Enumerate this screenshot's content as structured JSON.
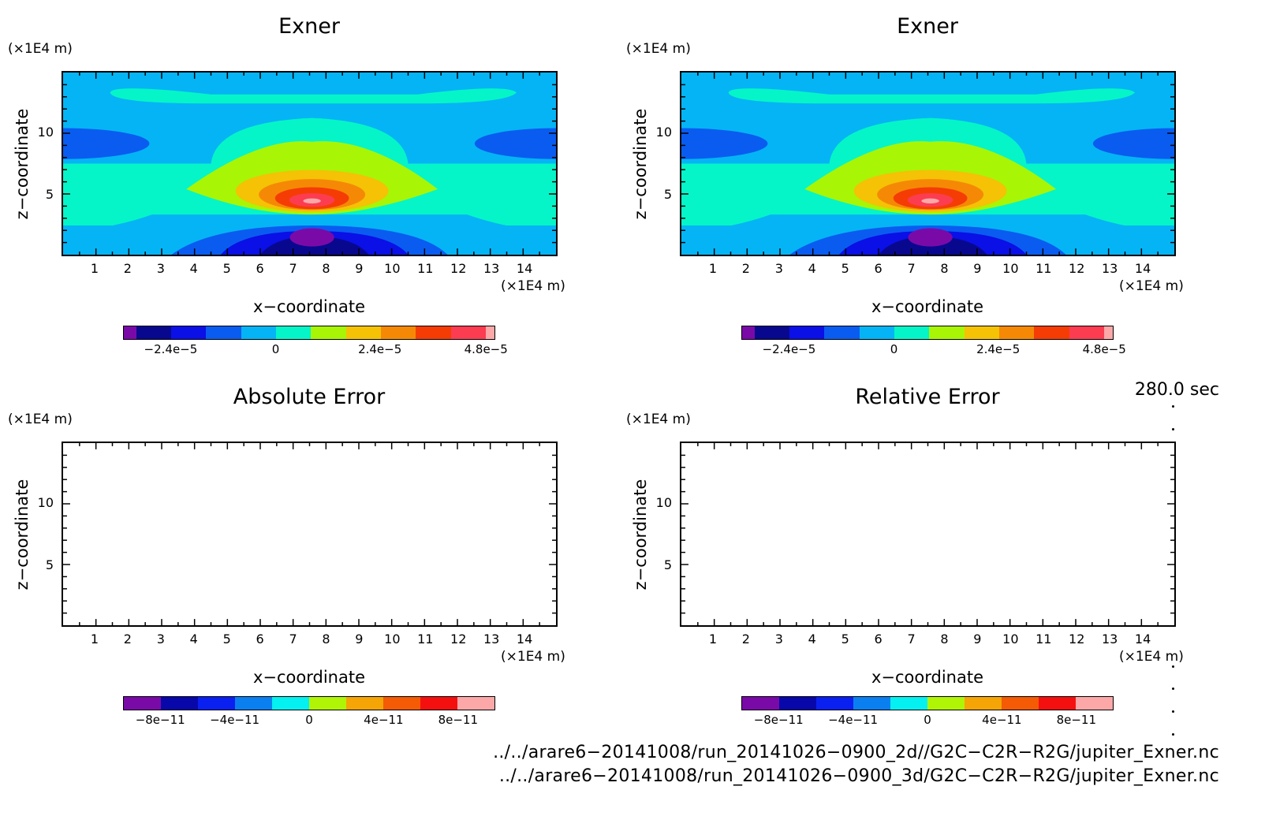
{
  "chart_data": [
    {
      "type": "heatmap",
      "title": "Exner",
      "xlabel": "x−coordinate",
      "ylabel": "z−coordinate",
      "x_unit": "(×1E4 m)",
      "y_unit": "(×1E4 m)",
      "x_ticks": [
        "1",
        "2",
        "3",
        "4",
        "5",
        "6",
        "7",
        "8",
        "9",
        "10",
        "11",
        "12",
        "13",
        "14"
      ],
      "y_ticks": [
        "5",
        "10"
      ],
      "xlim": [
        0,
        15
      ],
      "ylim": [
        0,
        15
      ],
      "colorbar_labels": [
        "−2.4e−5",
        "0",
        "2.4e−5",
        "4.8e−5"
      ]
    },
    {
      "type": "heatmap",
      "title": "Exner",
      "xlabel": "x−coordinate",
      "ylabel": "z−coordinate",
      "x_unit": "(×1E4 m)",
      "y_unit": "(×1E4 m)",
      "x_ticks": [
        "1",
        "2",
        "3",
        "4",
        "5",
        "6",
        "7",
        "8",
        "9",
        "10",
        "11",
        "12",
        "13",
        "14"
      ],
      "y_ticks": [
        "5",
        "10"
      ],
      "xlim": [
        0,
        15
      ],
      "ylim": [
        0,
        15
      ],
      "colorbar_labels": [
        "−2.4e−5",
        "0",
        "2.4e−5",
        "4.8e−5"
      ]
    },
    {
      "type": "heatmap",
      "title": "Absolute Error",
      "xlabel": "x−coordinate",
      "ylabel": "z−coordinate",
      "x_unit": "(×1E4 m)",
      "y_unit": "(×1E4 m)",
      "x_ticks": [
        "1",
        "2",
        "3",
        "4",
        "5",
        "6",
        "7",
        "8",
        "9",
        "10",
        "11",
        "12",
        "13",
        "14"
      ],
      "y_ticks": [
        "5",
        "10"
      ],
      "xlim": [
        0,
        15
      ],
      "ylim": [
        0,
        15
      ],
      "colorbar_labels": [
        "−8e−11",
        "−4e−11",
        "0",
        "4e−11",
        "8e−11"
      ]
    },
    {
      "type": "heatmap",
      "title": "Relative Error",
      "xlabel": "x−coordinate",
      "ylabel": "z−coordinate",
      "x_unit": "(×1E4 m)",
      "y_unit": "(×1E4 m)",
      "x_ticks": [
        "1",
        "2",
        "3",
        "4",
        "5",
        "6",
        "7",
        "8",
        "9",
        "10",
        "11",
        "12",
        "13",
        "14"
      ],
      "y_ticks": [
        "5",
        "10"
      ],
      "xlim": [
        0,
        15
      ],
      "ylim": [
        0,
        15
      ],
      "colorbar_labels": [
        "−8e−11",
        "−4e−11",
        "0",
        "4e−11",
        "8e−11"
      ]
    }
  ],
  "palette_top": [
    "#7a0aa8",
    "#08088f",
    "#0a10e6",
    "#0a5cf0",
    "#05b4f5",
    "#05f5c8",
    "#a8f505",
    "#f5c205",
    "#f58905",
    "#f53c05",
    "#fc3c50",
    "#fca8a8"
  ],
  "palette_bottom": [
    "#7a0aa8",
    "#0808aa",
    "#0a20f0",
    "#0a80f0",
    "#05f0f0",
    "#b0f505",
    "#f5a505",
    "#f55a05",
    "#f51010",
    "#fca8a8"
  ],
  "time_label": "280.0 sec",
  "footer_lines": [
    "../../arare6−20141008/run_20141026−0900_2d//G2C−C2R−R2G/jupiter_Exner.nc",
    "../../arare6−20141008/run_20141026−0900_3d/G2C−C2R−R2G/jupiter_Exner.nc"
  ]
}
